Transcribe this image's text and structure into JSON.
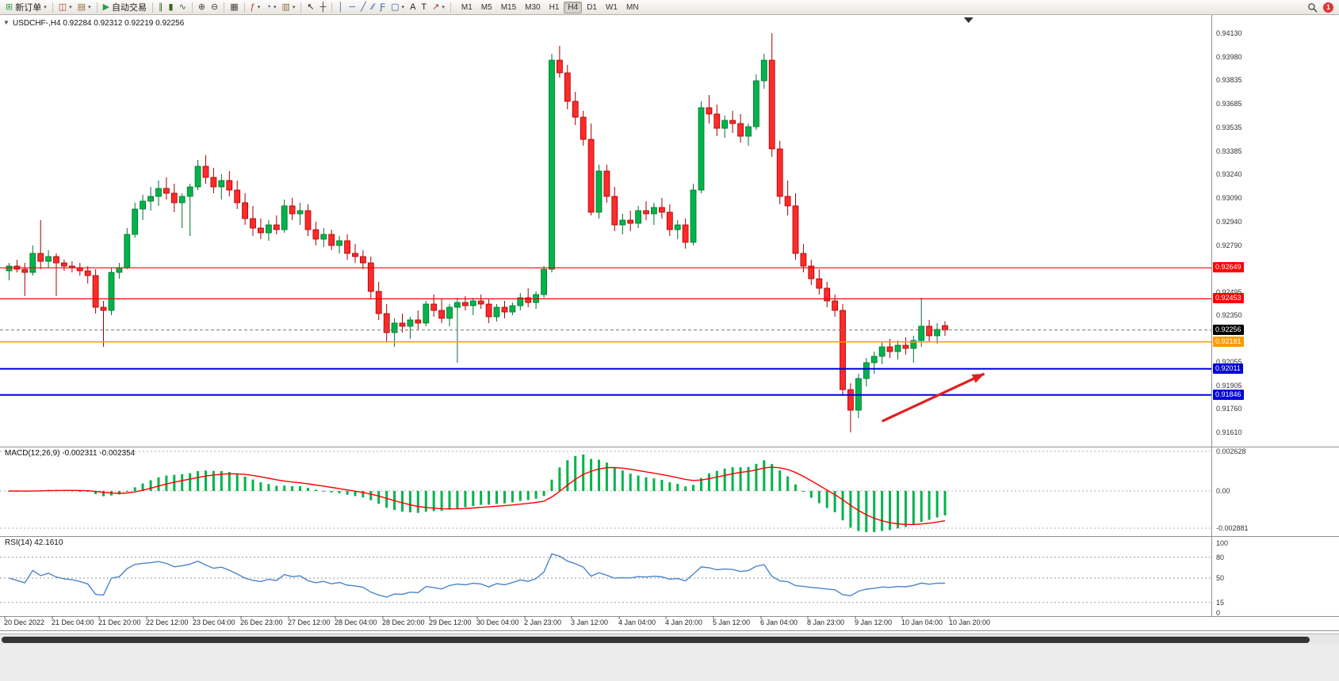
{
  "colors": {
    "candle_up": "#00b44a",
    "candle_up_border": "#00722d",
    "candle_down": "#ff2a2a",
    "candle_down_border": "#a30000",
    "macd_histogram": "#00b44a",
    "macd_signal": "#ff0000",
    "rsi_line": "#4a86c8",
    "line_red": "#ff0000",
    "line_orange": "#ff9900",
    "line_blue": "#0000dd"
  },
  "toolbar": {
    "badge": "1",
    "caret_glyph": "▾",
    "groups": [
      {
        "items": [
          {
            "name": "new-order-button",
            "glyph": "⊞",
            "glyph_color": "#2e9e3f",
            "label": "新订单",
            "caret": true
          }
        ]
      },
      {
        "items": [
          {
            "name": "new-chart-button",
            "glyph": "◫",
            "glyph_color": "#b0372f",
            "caret": true
          },
          {
            "name": "profiles-button",
            "glyph": "▤",
            "glyph_color": "#8a6d3b",
            "caret": true
          }
        ]
      },
      {
        "items": [
          {
            "name": "autotrading-button",
            "glyph": "▶",
            "glyph_color": "#2e9e3f",
            "label": "自动交易"
          }
        ]
      },
      {
        "items": [
          {
            "name": "bar-chart-type-button",
            "glyph": "∥",
            "glyph_color": "#33691e"
          },
          {
            "name": "candlestick-chart-type-button",
            "glyph": "▮",
            "glyph_color": "#33691e"
          },
          {
            "name": "line-chart-type-button",
            "glyph": "∿",
            "glyph_color": "#33691e"
          }
        ]
      },
      {
        "items": [
          {
            "name": "zoom-in-button",
            "glyph": "⊕",
            "glyph_color": "#444"
          },
          {
            "name": "zoom-out-button",
            "glyph": "⊖",
            "glyph_color": "#444"
          }
        ]
      },
      {
        "items": [
          {
            "name": "tile-windows-button",
            "glyph": "▦",
            "glyph_color": "#444"
          }
        ]
      },
      {
        "items": [
          {
            "name": "indicators-button",
            "glyph": "ƒ",
            "glyph_color": "#b0372f",
            "caret": true
          },
          {
            "name": "periods-button",
            "glyph": "◔",
            "glyph_color": "#2e5f9e",
            "caret": true
          },
          {
            "name": "templates-button",
            "glyph": "▥",
            "glyph_color": "#8a6d3b",
            "caret": true
          }
        ]
      },
      {
        "items": [
          {
            "name": "cursor-button",
            "glyph": "↖",
            "glyph_color": "#222"
          },
          {
            "name": "crosshair-button",
            "glyph": "┼",
            "glyph_color": "#222"
          }
        ]
      },
      {
        "items": [
          {
            "name": "vertical-line-button",
            "glyph": "│",
            "glyph_color": "#2e5f9e"
          },
          {
            "name": "horizontal-line-button",
            "glyph": "─",
            "glyph_color": "#2e5f9e"
          },
          {
            "name": "trendline-button",
            "glyph": "╱",
            "glyph_color": "#2e5f9e"
          },
          {
            "name": "channel-button",
            "glyph": "∕∕",
            "glyph_color": "#2e5f9e"
          },
          {
            "name": "fibonacci-button",
            "glyph": "Ƒ",
            "glyph_color": "#2e5f9e"
          },
          {
            "name": "shapes-button",
            "glyph": "▢",
            "glyph_color": "#2e5f9e",
            "caret": true
          },
          {
            "name": "text-button",
            "glyph": "A",
            "glyph_color": "#222"
          },
          {
            "name": "label-button",
            "glyph": "T",
            "glyph_color": "#222"
          },
          {
            "name": "arrows-button",
            "glyph": "↗",
            "glyph_color": "#b0372f",
            "caret": true
          }
        ]
      }
    ],
    "timeframes": [
      {
        "label": "M1"
      },
      {
        "label": "M5"
      },
      {
        "label": "M15"
      },
      {
        "label": "M30"
      },
      {
        "label": "H1"
      },
      {
        "label": "H4",
        "active": true
      },
      {
        "label": "D1"
      },
      {
        "label": "W1"
      },
      {
        "label": "MN"
      }
    ]
  },
  "panels": {
    "one_click_glyph": "▼",
    "main_title": "USDCHF-,H4  0.92284 0.92312 0.92219 0.92256",
    "macd_title": "MACD(12,26,9) -0.002311 -0.002354",
    "rsi_title": "RSI(14) 42.1610"
  },
  "price_axis": {
    "badges": [
      {
        "text": "0.92649",
        "price": 0.92649,
        "bg": "#ff0000"
      },
      {
        "text": "0.92453",
        "price": 0.92453,
        "bg": "#ff0000"
      },
      {
        "text": "0.92256",
        "price": 0.92256,
        "bg": "#000000"
      },
      {
        "text": "0.92181",
        "price": 0.92181,
        "bg": "#ff9900"
      },
      {
        "text": "0.92011",
        "price": 0.92011,
        "bg": "#0000dd"
      },
      {
        "text": "0.91846",
        "price": 0.91846,
        "bg": "#0000dd"
      }
    ]
  },
  "chart_data": {
    "type": "candlestick",
    "symbol": "USDCHF-",
    "timeframe": "H4",
    "current_bar": {
      "open": 0.92284,
      "high": 0.92312,
      "low": 0.92219,
      "close": 0.92256
    },
    "current_price": 0.92256,
    "grid": false,
    "ylim": [
      0.9161,
      0.9413
    ],
    "y_axis_labels": [
      "0.94130",
      "0.93980",
      "0.93835",
      "0.93685",
      "0.93535",
      "0.93385",
      "0.93240",
      "0.93090",
      "0.92940",
      "0.92790",
      "0.92495",
      "0.92350",
      "0.92055",
      "0.91905",
      "0.91760",
      "0.91610"
    ],
    "x_labels": [
      "20 Dec 2022",
      "21 Dec 04:00",
      "21 Dec 20:00",
      "22 Dec 12:00",
      "23 Dec 04:00",
      "26 Dec 23:00",
      "27 Dec 12:00",
      "28 Dec 04:00",
      "28 Dec 20:00",
      "29 Dec 12:00",
      "30 Dec 04:00",
      "2 Jan 23:00",
      "3 Jan 12:00",
      "4 Jan 04:00",
      "4 Jan 20:00",
      "5 Jan 12:00",
      "6 Jan 04:00",
      "8 Jan 23:00",
      "9 Jan 12:00",
      "10 Jan 04:00",
      "10 Jan 20:00"
    ],
    "hlines": [
      {
        "name": "resistance-line-1",
        "price": 0.92649,
        "color": "#ff0000",
        "width": 1.2
      },
      {
        "name": "resistance-line-2",
        "price": 0.92453,
        "color": "#ff0000",
        "width": 1.2
      },
      {
        "name": "pivot-line",
        "price": 0.92181,
        "color": "#ff9900",
        "width": 1.5
      },
      {
        "name": "support-line-1",
        "price": 0.92011,
        "color": "#0000dd",
        "width": 2
      },
      {
        "name": "support-line-2",
        "price": 0.91846,
        "color": "#0000dd",
        "width": 2
      }
    ],
    "indicators": [
      {
        "name": "MACD",
        "params": [
          12,
          26,
          9
        ],
        "values": [
          -0.002311,
          -0.002354
        ],
        "axis_labels": [
          "0.002628",
          "0.00",
          "-0.002881"
        ]
      },
      {
        "name": "RSI",
        "params": [
          14
        ],
        "value": 42.161,
        "levels": [
          80,
          50,
          15
        ],
        "axis_labels": [
          "100",
          "80",
          "50",
          "15",
          "0"
        ]
      }
    ],
    "annotations": {
      "arrow": {
        "from_bar": 111,
        "from_price": 0.9168,
        "to_bar": 124,
        "to_price": 0.9198,
        "color": "#e02020"
      },
      "shift_marker_bar": 122
    },
    "ohlc": [
      [
        0.9263,
        0.9268,
        0.9257,
        0.9266
      ],
      [
        0.9266,
        0.927,
        0.9262,
        0.9264
      ],
      [
        0.9264,
        0.9268,
        0.9247,
        0.9262
      ],
      [
        0.9262,
        0.9279,
        0.926,
        0.9274
      ],
      [
        0.9274,
        0.9295,
        0.9264,
        0.9269
      ],
      [
        0.9269,
        0.9276,
        0.9265,
        0.9272
      ],
      [
        0.9272,
        0.9274,
        0.9247,
        0.9268
      ],
      [
        0.9268,
        0.927,
        0.9263,
        0.9266
      ],
      [
        0.9266,
        0.9269,
        0.9262,
        0.9265
      ],
      [
        0.9265,
        0.9268,
        0.926,
        0.9263
      ],
      [
        0.9263,
        0.9266,
        0.9255,
        0.926
      ],
      [
        0.926,
        0.9264,
        0.9236,
        0.924
      ],
      [
        0.924,
        0.9244,
        0.9215,
        0.9238
      ],
      [
        0.9238,
        0.9265,
        0.9235,
        0.9262
      ],
      [
        0.9262,
        0.9268,
        0.9258,
        0.9265
      ],
      [
        0.9265,
        0.929,
        0.9264,
        0.9286
      ],
      [
        0.9286,
        0.9306,
        0.9284,
        0.9302
      ],
      [
        0.9302,
        0.9311,
        0.9295,
        0.9307
      ],
      [
        0.9307,
        0.9316,
        0.9301,
        0.931
      ],
      [
        0.931,
        0.932,
        0.9304,
        0.9315
      ],
      [
        0.9315,
        0.9322,
        0.9308,
        0.9312
      ],
      [
        0.9312,
        0.9318,
        0.93,
        0.9306
      ],
      [
        0.9306,
        0.9312,
        0.929,
        0.931
      ],
      [
        0.931,
        0.9318,
        0.9285,
        0.9316
      ],
      [
        0.9316,
        0.9333,
        0.9314,
        0.9329
      ],
      [
        0.9329,
        0.9336,
        0.9318,
        0.9322
      ],
      [
        0.9322,
        0.9328,
        0.9312,
        0.9316
      ],
      [
        0.9316,
        0.9324,
        0.9308,
        0.932
      ],
      [
        0.932,
        0.9326,
        0.931,
        0.9314
      ],
      [
        0.9314,
        0.932,
        0.9302,
        0.9306
      ],
      [
        0.9306,
        0.9312,
        0.9292,
        0.9296
      ],
      [
        0.9296,
        0.9304,
        0.9285,
        0.929
      ],
      [
        0.929,
        0.9296,
        0.9283,
        0.9287
      ],
      [
        0.9287,
        0.9295,
        0.9282,
        0.9292
      ],
      [
        0.9292,
        0.9298,
        0.9286,
        0.9289
      ],
      [
        0.9289,
        0.9308,
        0.9287,
        0.9304
      ],
      [
        0.9304,
        0.9309,
        0.9295,
        0.9299
      ],
      [
        0.9299,
        0.9306,
        0.9292,
        0.9301
      ],
      [
        0.9301,
        0.9305,
        0.9285,
        0.9289
      ],
      [
        0.9289,
        0.9294,
        0.9279,
        0.9283
      ],
      [
        0.9283,
        0.929,
        0.9278,
        0.9286
      ],
      [
        0.9286,
        0.9289,
        0.9276,
        0.9279
      ],
      [
        0.9279,
        0.9285,
        0.9274,
        0.9282
      ],
      [
        0.9282,
        0.9286,
        0.927,
        0.9274
      ],
      [
        0.9274,
        0.928,
        0.9268,
        0.9272
      ],
      [
        0.9272,
        0.9276,
        0.9264,
        0.9268
      ],
      [
        0.9268,
        0.9272,
        0.9245,
        0.925
      ],
      [
        0.925,
        0.9256,
        0.9232,
        0.9236
      ],
      [
        0.9236,
        0.9242,
        0.9218,
        0.9224
      ],
      [
        0.9224,
        0.9233,
        0.9215,
        0.923
      ],
      [
        0.923,
        0.9236,
        0.9224,
        0.9228
      ],
      [
        0.9228,
        0.9234,
        0.922,
        0.9232
      ],
      [
        0.9232,
        0.9238,
        0.9226,
        0.923
      ],
      [
        0.923,
        0.9244,
        0.9228,
        0.9242
      ],
      [
        0.9242,
        0.9248,
        0.9234,
        0.9238
      ],
      [
        0.9238,
        0.9245,
        0.923,
        0.9233
      ],
      [
        0.9233,
        0.9242,
        0.9228,
        0.924
      ],
      [
        0.924,
        0.9246,
        0.9205,
        0.9243
      ],
      [
        0.9243,
        0.9247,
        0.9238,
        0.9241
      ],
      [
        0.9241,
        0.9246,
        0.9235,
        0.9244
      ],
      [
        0.9244,
        0.9248,
        0.9239,
        0.9242
      ],
      [
        0.9242,
        0.9245,
        0.923,
        0.9234
      ],
      [
        0.9234,
        0.9242,
        0.9231,
        0.924
      ],
      [
        0.924,
        0.9244,
        0.9233,
        0.9237
      ],
      [
        0.9237,
        0.9243,
        0.9235,
        0.9241
      ],
      [
        0.9241,
        0.9249,
        0.9238,
        0.9246
      ],
      [
        0.9246,
        0.9252,
        0.924,
        0.9243
      ],
      [
        0.9243,
        0.925,
        0.9239,
        0.9248
      ],
      [
        0.9248,
        0.9266,
        0.9246,
        0.9264
      ],
      [
        0.9264,
        0.94,
        0.9262,
        0.9396
      ],
      [
        0.9396,
        0.9405,
        0.9385,
        0.9388
      ],
      [
        0.9388,
        0.9393,
        0.9365,
        0.937
      ],
      [
        0.937,
        0.9376,
        0.9355,
        0.936
      ],
      [
        0.936,
        0.9364,
        0.9342,
        0.9346
      ],
      [
        0.9346,
        0.9356,
        0.9298,
        0.93
      ],
      [
        0.93,
        0.933,
        0.9296,
        0.9326
      ],
      [
        0.9326,
        0.933,
        0.9306,
        0.931
      ],
      [
        0.931,
        0.9316,
        0.9288,
        0.9292
      ],
      [
        0.9292,
        0.9299,
        0.9286,
        0.9295
      ],
      [
        0.9295,
        0.9301,
        0.9288,
        0.9293
      ],
      [
        0.9293,
        0.9304,
        0.929,
        0.9301
      ],
      [
        0.9301,
        0.9307,
        0.9295,
        0.9299
      ],
      [
        0.9299,
        0.9306,
        0.9292,
        0.9303
      ],
      [
        0.9303,
        0.9309,
        0.9296,
        0.93
      ],
      [
        0.93,
        0.9305,
        0.9285,
        0.9289
      ],
      [
        0.9289,
        0.9295,
        0.9283,
        0.9292
      ],
      [
        0.9292,
        0.9296,
        0.9277,
        0.9281
      ],
      [
        0.9281,
        0.9318,
        0.9279,
        0.9314
      ],
      [
        0.9314,
        0.937,
        0.9312,
        0.9366
      ],
      [
        0.9366,
        0.9374,
        0.9356,
        0.9362
      ],
      [
        0.9362,
        0.9368,
        0.9348,
        0.9353
      ],
      [
        0.9353,
        0.9361,
        0.9347,
        0.9358
      ],
      [
        0.9358,
        0.9364,
        0.935,
        0.9356
      ],
      [
        0.9356,
        0.9362,
        0.9344,
        0.9348
      ],
      [
        0.9348,
        0.9356,
        0.9342,
        0.9354
      ],
      [
        0.9354,
        0.9387,
        0.9352,
        0.9383
      ],
      [
        0.9383,
        0.94,
        0.9378,
        0.9396
      ],
      [
        0.9396,
        0.9413,
        0.9335,
        0.934
      ],
      [
        0.934,
        0.9345,
        0.9305,
        0.931
      ],
      [
        0.931,
        0.932,
        0.9298,
        0.9304
      ],
      [
        0.9304,
        0.9312,
        0.927,
        0.9274
      ],
      [
        0.9274,
        0.928,
        0.9262,
        0.9266
      ],
      [
        0.9266,
        0.927,
        0.9254,
        0.9258
      ],
      [
        0.9258,
        0.9264,
        0.9248,
        0.9252
      ],
      [
        0.9252,
        0.9256,
        0.924,
        0.9244
      ],
      [
        0.9244,
        0.9248,
        0.9234,
        0.9238
      ],
      [
        0.9238,
        0.9242,
        0.9184,
        0.9188
      ],
      [
        0.9188,
        0.9192,
        0.9161,
        0.9175
      ],
      [
        0.9175,
        0.9198,
        0.917,
        0.9195
      ],
      [
        0.9195,
        0.9208,
        0.919,
        0.9205
      ],
      [
        0.9205,
        0.9212,
        0.9198,
        0.9209
      ],
      [
        0.9209,
        0.9218,
        0.9204,
        0.9215
      ],
      [
        0.9215,
        0.922,
        0.9208,
        0.9212
      ],
      [
        0.9212,
        0.9219,
        0.9207,
        0.9216
      ],
      [
        0.9216,
        0.9221,
        0.921,
        0.9214
      ],
      [
        0.9214,
        0.9222,
        0.9205,
        0.9219
      ],
      [
        0.9219,
        0.9246,
        0.9215,
        0.9228
      ],
      [
        0.9228,
        0.9232,
        0.9218,
        0.9222
      ],
      [
        0.9222,
        0.923,
        0.9217,
        0.9226
      ],
      [
        0.92284,
        0.92312,
        0.92219,
        0.92256
      ]
    ]
  }
}
